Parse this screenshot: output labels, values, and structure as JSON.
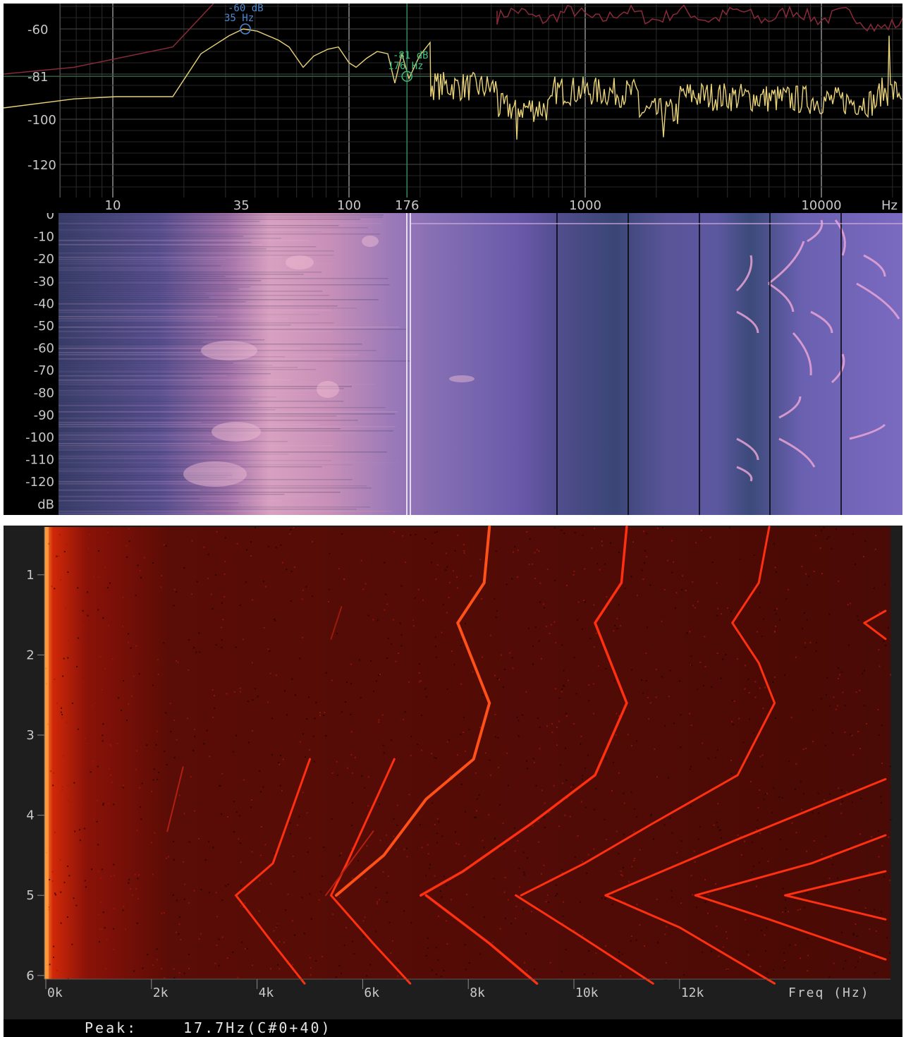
{
  "spectrum": {
    "y_ticks": [
      "-60",
      "-81",
      "-100",
      "-120"
    ],
    "x_ticks": [
      "10",
      "35",
      "100",
      "176",
      "1000",
      "10000",
      "Hz"
    ],
    "cursor_peak": {
      "db": "-60 dB",
      "hz": "35 Hz"
    },
    "cursor_main": {
      "db": "-81 dB",
      "hz": "176 Hz"
    },
    "colors": {
      "trace": "#e8d27a",
      "max_trace": "#8a2a3a",
      "grid": "#3a3a3a",
      "cursor": "#2f8a5e",
      "cursor_peak_text": "#4a8ad0",
      "cursor_main_text": "#3fbf7f"
    }
  },
  "spectrogram": {
    "y_ticks": [
      "0",
      "-10",
      "-20",
      "-30",
      "-40",
      "-50",
      "-60",
      "-70",
      "-80",
      "-90",
      "-100",
      "-110",
      "-120",
      "dB"
    ],
    "colors": {
      "base": "#6a58b0",
      "hot": "#f0b0c8",
      "cool": "#2e3c6a"
    }
  },
  "spectrogram2": {
    "y_ticks": [
      "1",
      "2",
      "3",
      "4",
      "5",
      "6"
    ],
    "x_ticks": [
      "0k",
      "2k",
      "4k",
      "6k",
      "8k",
      "10k",
      "12k",
      "Freq (Hz)"
    ],
    "colors": {
      "background": "#5a0c06",
      "line": "#ff3010",
      "bright": "#ffa040"
    }
  },
  "status": {
    "peak_label": "Peak:",
    "peak_value": "17.7Hz(C#0+40)"
  }
}
